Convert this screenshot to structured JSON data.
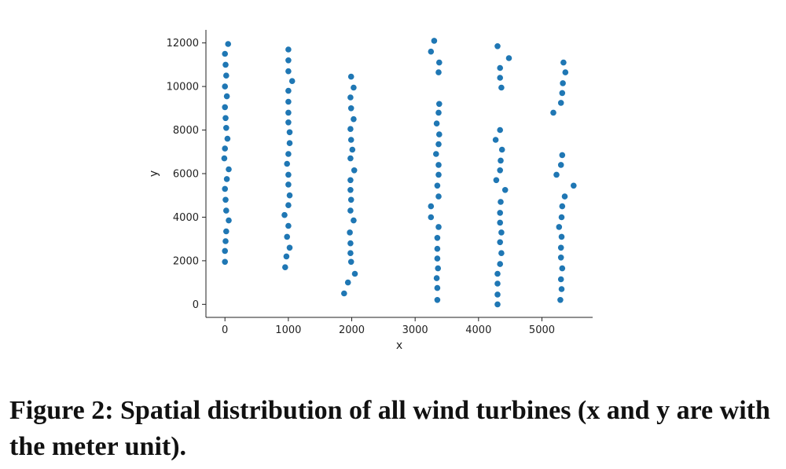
{
  "caption": "Figure 2: Spatial distribution of all wind turbines (x and y are with the meter unit).",
  "chart_data": {
    "type": "scatter",
    "title": "",
    "xlabel": "x",
    "ylabel": "y",
    "xlim": [
      -300,
      5800
    ],
    "ylim": [
      -600,
      12600
    ],
    "xticks": [
      0,
      1000,
      2000,
      3000,
      4000,
      5000
    ],
    "yticks": [
      0,
      2000,
      4000,
      6000,
      8000,
      10000,
      12000
    ],
    "marker_color": "#1f77b4",
    "grid": false,
    "series": [
      {
        "points": [
          [
            50,
            11950
          ],
          [
            0,
            11500
          ],
          [
            10,
            11000
          ],
          [
            20,
            10500
          ],
          [
            0,
            10000
          ],
          [
            30,
            9550
          ],
          [
            0,
            9050
          ],
          [
            10,
            8550
          ],
          [
            20,
            8100
          ],
          [
            40,
            7600
          ],
          [
            0,
            7150
          ],
          [
            -10,
            6700
          ],
          [
            60,
            6200
          ],
          [
            30,
            5750
          ],
          [
            0,
            5300
          ],
          [
            10,
            4800
          ],
          [
            20,
            4300
          ],
          [
            60,
            3850
          ],
          [
            20,
            3350
          ],
          [
            10,
            2900
          ],
          [
            0,
            2450
          ],
          [
            0,
            1950
          ],
          [
            1000,
            11700
          ],
          [
            1000,
            11200
          ],
          [
            1000,
            10700
          ],
          [
            1060,
            10250
          ],
          [
            1000,
            9800
          ],
          [
            1000,
            9300
          ],
          [
            1000,
            8800
          ],
          [
            1000,
            8350
          ],
          [
            1020,
            7900
          ],
          [
            1020,
            7400
          ],
          [
            1000,
            6900
          ],
          [
            980,
            6450
          ],
          [
            1000,
            5950
          ],
          [
            1000,
            5500
          ],
          [
            1020,
            5000
          ],
          [
            1000,
            4550
          ],
          [
            940,
            4100
          ],
          [
            1000,
            3600
          ],
          [
            980,
            3100
          ],
          [
            1020,
            2600
          ],
          [
            970,
            2200
          ],
          [
            950,
            1700
          ],
          [
            1990,
            10450
          ],
          [
            2030,
            9950
          ],
          [
            1980,
            9500
          ],
          [
            1990,
            9000
          ],
          [
            2030,
            8500
          ],
          [
            1980,
            8050
          ],
          [
            1990,
            7550
          ],
          [
            2010,
            7100
          ],
          [
            1980,
            6700
          ],
          [
            2040,
            6150
          ],
          [
            1980,
            5700
          ],
          [
            1980,
            5250
          ],
          [
            1990,
            4800
          ],
          [
            1980,
            4300
          ],
          [
            2030,
            3850
          ],
          [
            1970,
            3300
          ],
          [
            1980,
            2800
          ],
          [
            1980,
            2350
          ],
          [
            1990,
            1950
          ],
          [
            2050,
            1400
          ],
          [
            1940,
            1000
          ],
          [
            1880,
            500
          ],
          [
            3300,
            12100
          ],
          [
            3250,
            11600
          ],
          [
            3380,
            11100
          ],
          [
            3370,
            10650
          ],
          [
            3380,
            9200
          ],
          [
            3370,
            8800
          ],
          [
            3340,
            8300
          ],
          [
            3380,
            7800
          ],
          [
            3370,
            7350
          ],
          [
            3330,
            6900
          ],
          [
            3370,
            6400
          ],
          [
            3370,
            5950
          ],
          [
            3350,
            5450
          ],
          [
            3370,
            4950
          ],
          [
            3250,
            4500
          ],
          [
            3250,
            4000
          ],
          [
            3370,
            3550
          ],
          [
            3350,
            3050
          ],
          [
            3350,
            2550
          ],
          [
            3350,
            2100
          ],
          [
            3360,
            1650
          ],
          [
            3340,
            1200
          ],
          [
            3350,
            750
          ],
          [
            3350,
            200
          ],
          [
            4300,
            11850
          ],
          [
            4480,
            11300
          ],
          [
            4340,
            10850
          ],
          [
            4340,
            10400
          ],
          [
            4360,
            9950
          ],
          [
            4340,
            8000
          ],
          [
            4270,
            7550
          ],
          [
            4370,
            7100
          ],
          [
            4350,
            6600
          ],
          [
            4340,
            6150
          ],
          [
            4280,
            5700
          ],
          [
            4420,
            5250
          ],
          [
            4350,
            4700
          ],
          [
            4340,
            4200
          ],
          [
            4340,
            3750
          ],
          [
            4360,
            3300
          ],
          [
            4340,
            2850
          ],
          [
            4360,
            2350
          ],
          [
            4340,
            1850
          ],
          [
            4300,
            1400
          ],
          [
            4300,
            950
          ],
          [
            4300,
            450
          ],
          [
            4300,
            0
          ],
          [
            5340,
            11100
          ],
          [
            5370,
            10650
          ],
          [
            5330,
            10150
          ],
          [
            5320,
            9700
          ],
          [
            5300,
            9250
          ],
          [
            5180,
            8800
          ],
          [
            5320,
            6850
          ],
          [
            5300,
            6400
          ],
          [
            5230,
            5950
          ],
          [
            5500,
            5450
          ],
          [
            5360,
            4950
          ],
          [
            5320,
            4500
          ],
          [
            5310,
            4000
          ],
          [
            5270,
            3550
          ],
          [
            5310,
            3100
          ],
          [
            5300,
            2600
          ],
          [
            5300,
            2150
          ],
          [
            5320,
            1650
          ],
          [
            5300,
            1150
          ],
          [
            5310,
            700
          ],
          [
            5290,
            200
          ]
        ]
      }
    ]
  }
}
